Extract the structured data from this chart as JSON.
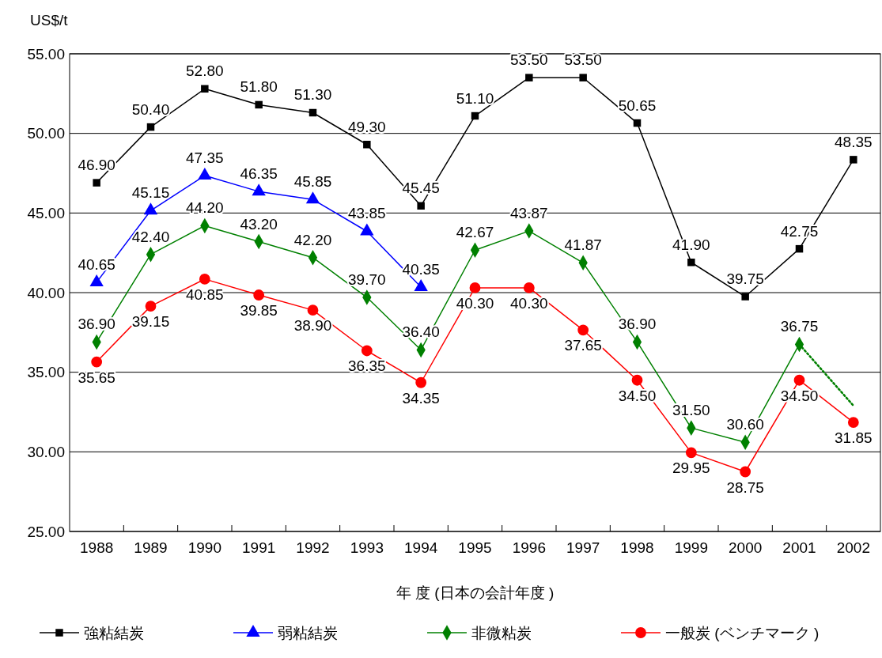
{
  "chart_data": {
    "type": "line",
    "xlabel": "年 度 (日本の会計年度 )",
    "ylabel": "US$/t",
    "categories": [
      "1988",
      "1989",
      "1990",
      "1991",
      "1992",
      "1993",
      "1994",
      "1995",
      "1996",
      "1997",
      "1998",
      "1999",
      "2000",
      "2001",
      "2002"
    ],
    "ylim": [
      25,
      55
    ],
    "yticks": [
      {
        "value": 25,
        "label": "25.00"
      },
      {
        "value": 30,
        "label": "30.00"
      },
      {
        "value": 35,
        "label": "35.00"
      },
      {
        "value": 40,
        "label": "40.00"
      },
      {
        "value": 45,
        "label": "45.00"
      },
      {
        "value": 50,
        "label": "50.00"
      },
      {
        "value": 55,
        "label": "55.00"
      }
    ],
    "grid": "y",
    "legend": "bottom",
    "line_style": "solid",
    "series": [
      {
        "name": "強粘結炭",
        "color": "#000000",
        "marker": "square",
        "values": [
          46.9,
          50.4,
          52.8,
          51.8,
          51.3,
          49.3,
          45.45,
          51.1,
          53.5,
          53.5,
          50.65,
          41.9,
          39.75,
          42.75,
          48.35
        ],
        "value_labels": [
          "46.90",
          "50.40",
          "52.80",
          "51.80",
          "51.30",
          "49.30",
          "45.45",
          "51.10",
          "53.50",
          "53.50",
          "50.65",
          "41.90",
          "39.75",
          "42.75",
          "48.35"
        ]
      },
      {
        "name": "弱粘結炭",
        "color": "#0000ff",
        "marker": "triangle",
        "values": [
          40.65,
          45.15,
          47.35,
          46.35,
          45.85,
          43.85,
          40.35,
          null,
          null,
          null,
          null,
          null,
          null,
          null,
          null
        ],
        "value_labels": [
          "40.65",
          "45.15",
          "47.35",
          "46.35",
          "45.85",
          "43.85",
          "40.35",
          null,
          null,
          null,
          null,
          null,
          null,
          null,
          null
        ]
      },
      {
        "name": "非微粘炭",
        "color": "#008000",
        "marker": "diamond",
        "values": [
          36.9,
          42.4,
          44.2,
          43.2,
          42.2,
          39.7,
          36.4,
          42.67,
          43.87,
          41.87,
          36.9,
          31.5,
          30.6,
          36.75,
          null
        ],
        "value_labels": [
          "36.90",
          "42.40",
          "44.20",
          "43.20",
          "42.20",
          "39.70",
          "36.40",
          "42.67",
          "43.87",
          "41.87",
          "36.90",
          "31.50",
          "30.60",
          "36.75",
          null
        ]
      },
      {
        "name": "一般炭 (ベンチマーク )",
        "color": "#ff0000",
        "marker": "circle",
        "values": [
          35.65,
          39.15,
          40.85,
          39.85,
          38.9,
          36.35,
          34.35,
          40.3,
          40.3,
          37.65,
          34.5,
          29.95,
          28.75,
          34.5,
          31.85
        ],
        "value_labels": [
          "35.65",
          "39.15",
          "40.85",
          "39.85",
          "38.90",
          "36.35",
          "34.35",
          "40.30",
          "40.30",
          "37.65",
          "34.50",
          "29.95",
          "28.75",
          "34.50",
          "31.85"
        ]
      },
      {
        "color": "#008000",
        "marker": "none",
        "line_style": "dotted",
        "values": [
          null,
          null,
          null,
          null,
          null,
          null,
          null,
          null,
          null,
          null,
          null,
          null,
          null,
          36.75,
          32.9
        ]
      }
    ]
  }
}
